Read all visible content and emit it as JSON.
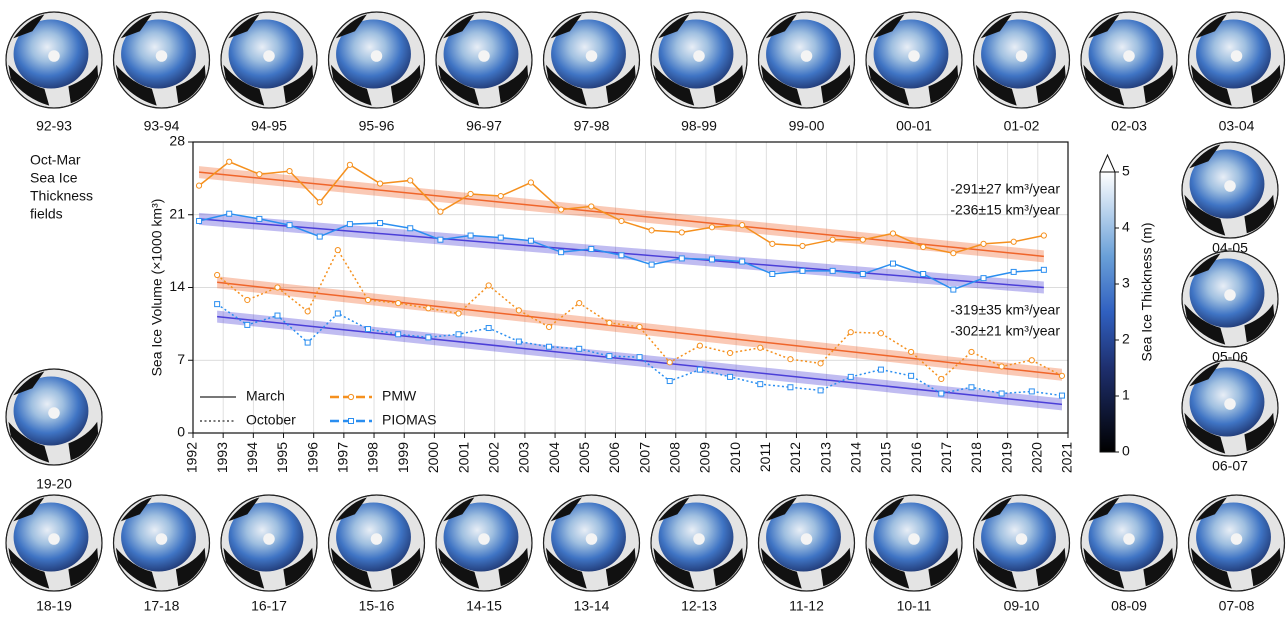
{
  "chart_data": {
    "type": "line",
    "ylabel": "Sea Ice Volume (×1000 km³)",
    "xlim": [
      1992,
      2021
    ],
    "xticks": [
      1992,
      1993,
      1994,
      1995,
      1996,
      1997,
      1998,
      1999,
      2000,
      2001,
      2002,
      2003,
      2004,
      2005,
      2006,
      2007,
      2008,
      2009,
      2010,
      2011,
      2012,
      2013,
      2014,
      2015,
      2016,
      2017,
      2018,
      2019,
      2020,
      2021
    ],
    "ylim": [
      0,
      28
    ],
    "yticks": [
      0,
      7,
      14,
      21,
      28
    ],
    "grid": true,
    "line_styles": [
      "March",
      "October"
    ],
    "x_march": [
      1992.2,
      1993.2,
      1994.2,
      1995.2,
      1996.2,
      1997.2,
      1998.2,
      1999.2,
      2000.2,
      2001.2,
      2002.2,
      2003.2,
      2004.2,
      2005.2,
      2006.2,
      2007.2,
      2008.2,
      2009.2,
      2010.2,
      2011.2,
      2012.2,
      2013.2,
      2014.2,
      2015.2,
      2016.2,
      2017.2,
      2018.2,
      2019.2,
      2020.2
    ],
    "x_october": [
      1992.8,
      1993.8,
      1994.8,
      1995.8,
      1996.8,
      1997.8,
      1998.8,
      1999.8,
      2000.8,
      2001.8,
      2002.8,
      2003.8,
      2004.8,
      2005.8,
      2006.8,
      2007.8,
      2008.8,
      2009.8,
      2010.8,
      2011.8,
      2012.8,
      2013.8,
      2014.8,
      2015.8,
      2016.8,
      2017.8,
      2018.8,
      2019.8,
      2020.8
    ],
    "series": [
      {
        "name": "PMW",
        "color": "#f5901e",
        "marker": "circle",
        "march": [
          23.8,
          26.1,
          24.9,
          25.2,
          22.2,
          25.8,
          24.0,
          24.3,
          21.3,
          23.0,
          22.8,
          24.1,
          21.5,
          21.8,
          20.4,
          19.5,
          19.3,
          19.8,
          20.0,
          18.2,
          18.0,
          18.6,
          18.6,
          19.2,
          17.9,
          17.3,
          18.2,
          18.4,
          19.0
        ],
        "october": [
          15.2,
          12.8,
          14.0,
          11.7,
          17.6,
          12.8,
          12.5,
          12.0,
          11.5,
          14.2,
          11.8,
          10.2,
          12.5,
          10.6,
          10.2,
          6.8,
          8.4,
          7.7,
          8.2,
          7.1,
          6.7,
          9.7,
          9.6,
          7.8,
          5.2,
          7.8,
          6.4,
          7.0,
          5.5
        ]
      },
      {
        "name": "PIOMAS",
        "color": "#2a8ef0",
        "marker": "square",
        "march": [
          20.4,
          21.1,
          20.6,
          20.0,
          18.9,
          20.1,
          20.2,
          19.7,
          18.6,
          19.0,
          18.8,
          18.5,
          17.4,
          17.7,
          17.1,
          16.2,
          16.8,
          16.7,
          16.5,
          15.3,
          15.6,
          15.6,
          15.3,
          16.3,
          15.3,
          13.8,
          14.9,
          15.5,
          15.7
        ],
        "october": [
          12.4,
          10.4,
          11.3,
          8.7,
          11.5,
          10.0,
          9.5,
          9.2,
          9.5,
          10.1,
          8.8,
          8.3,
          8.1,
          7.4,
          7.3,
          5.0,
          6.1,
          5.4,
          4.7,
          4.4,
          4.1,
          5.4,
          6.1,
          5.5,
          3.8,
          4.4,
          3.8,
          4.0,
          3.6
        ]
      }
    ],
    "trends": [
      {
        "label": "-291±27 km³/year",
        "label_color": "#f5901e",
        "color": "#f0652a",
        "x": [
          1992.2,
          2020.2
        ],
        "values": [
          25.1,
          17.0
        ]
      },
      {
        "label": "-236±15 km³/year",
        "label_color": "#2a8ef0",
        "color": "#4b3fd8",
        "x": [
          1992.2,
          2020.2
        ],
        "values": [
          20.6,
          14.0
        ]
      },
      {
        "label": "-319±35 km³/year",
        "label_color": "#f5901e",
        "color": "#f0652a",
        "x": [
          1992.8,
          2020.8
        ],
        "values": [
          14.5,
          5.6
        ]
      },
      {
        "label": "-302±21 km³/year",
        "label_color": "#2a8ef0",
        "color": "#4b3fd8",
        "x": [
          1992.8,
          2020.8
        ],
        "values": [
          11.2,
          2.75
        ]
      }
    ],
    "colorbar": {
      "label": "Sea Ice Thickness (m)",
      "lim": [
        0,
        5
      ],
      "ticks": [
        0,
        1,
        2,
        3,
        4,
        5
      ]
    }
  },
  "side_note": [
    "Oct-Mar",
    "Sea Ice",
    "Thickness",
    "fields"
  ],
  "maps": {
    "top": [
      "92-93",
      "93-94",
      "94-95",
      "95-96",
      "96-97",
      "97-98",
      "98-99",
      "99-00",
      "00-01",
      "01-02",
      "02-03",
      "03-04"
    ],
    "right": [
      "04-05",
      "05-06",
      "06-07"
    ],
    "bottom": [
      "18-19",
      "17-18",
      "16-17",
      "15-16",
      "14-15",
      "13-14",
      "12-13",
      "11-12",
      "10-11",
      "09-10",
      "08-09",
      "07-08"
    ],
    "left": [
      "19-20"
    ]
  }
}
